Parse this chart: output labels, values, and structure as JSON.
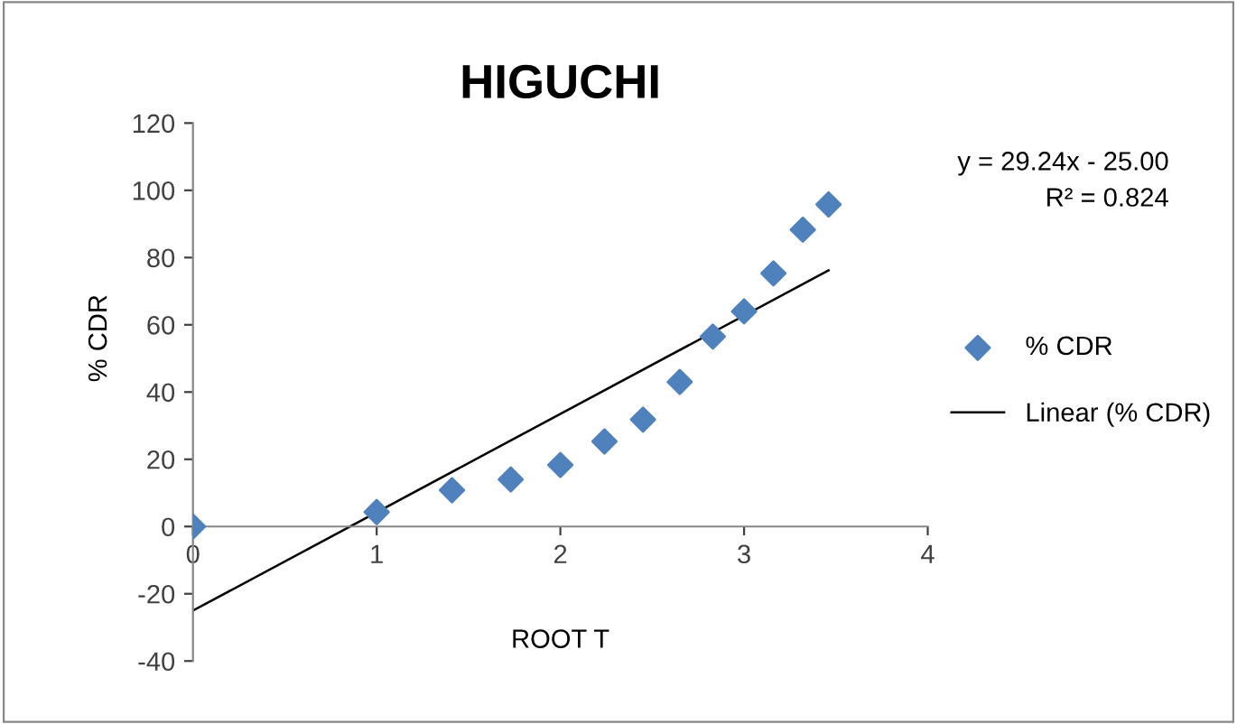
{
  "chart_data": {
    "type": "scatter",
    "title": "HIGUCHI",
    "xlabel": "ROOT T",
    "ylabel": "% CDR",
    "xlim": [
      0,
      4
    ],
    "xticks": [
      0,
      1,
      2,
      3,
      4
    ],
    "ylim": [
      -40,
      120
    ],
    "yticks": [
      -40,
      -20,
      0,
      20,
      40,
      60,
      80,
      100,
      120
    ],
    "grid": false,
    "legend": "right",
    "annotations": [
      "y = 29.24x - 25.00",
      "R² = 0.824"
    ],
    "series": [
      {
        "name": "% CDR",
        "marker": "diamond",
        "color": "#4f81bd",
        "x": [
          0,
          1,
          1.41,
          1.73,
          2.0,
          2.24,
          2.45,
          2.65,
          2.83,
          3.0,
          3.16,
          3.32,
          3.46
        ],
        "values": [
          0,
          4.3,
          10.8,
          14,
          18.3,
          25.3,
          31.8,
          43,
          56.5,
          64,
          75.3,
          88.3,
          95.8
        ]
      },
      {
        "name": "Linear (% CDR)",
        "type": "line",
        "marker": "none",
        "line_style": "solid",
        "color": "#000000",
        "x": [
          0,
          3.46
        ],
        "values": [
          -25,
          76.2
        ]
      }
    ]
  }
}
